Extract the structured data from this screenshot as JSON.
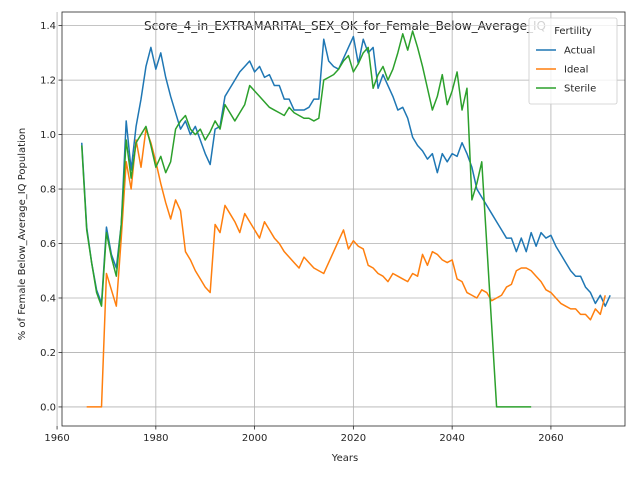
{
  "chart_data": {
    "type": "line",
    "title": "Score_4_in_EXTRAMARITAL_SEX_OK_for_Female_Below_Average_IQ",
    "xlabel": "Years",
    "ylabel": "% of Female Below_Average_IQ Population",
    "xlim": [
      1961,
      2075
    ],
    "ylim": [
      -0.07,
      1.45
    ],
    "xticks": [
      1960,
      1980,
      2000,
      2020,
      2040,
      2060
    ],
    "yticks": [
      0.0,
      0.2,
      0.4,
      0.6,
      0.8,
      1.0,
      1.2,
      1.4
    ],
    "xtick_labels": [
      "1960",
      "1980",
      "2000",
      "2020",
      "2040",
      "2060"
    ],
    "ytick_labels": [
      "0.0",
      "0.2",
      "0.4",
      "0.6",
      "0.8",
      "1.0",
      "1.2",
      "1.4"
    ],
    "grid": true,
    "legend": {
      "title": "Fertility",
      "placement": "top-right"
    },
    "series": [
      {
        "name": "Actual",
        "color": "#1f77b4",
        "points": [
          [
            1965,
            0.97
          ],
          [
            1966,
            0.66
          ],
          [
            1967,
            0.53
          ],
          [
            1968,
            0.43
          ],
          [
            1969,
            0.38
          ],
          [
            1970,
            0.66
          ],
          [
            1971,
            0.56
          ],
          [
            1972,
            0.51
          ],
          [
            1973,
            0.67
          ],
          [
            1974,
            1.05
          ],
          [
            1975,
            0.87
          ],
          [
            1976,
            1.03
          ],
          [
            1977,
            1.13
          ],
          [
            1978,
            1.25
          ],
          [
            1979,
            1.32
          ],
          [
            1980,
            1.24
          ],
          [
            1981,
            1.3
          ],
          [
            1982,
            1.21
          ],
          [
            1983,
            1.14
          ],
          [
            1984,
            1.08
          ],
          [
            1985,
            1.02
          ],
          [
            1986,
            1.05
          ],
          [
            1987,
            1.0
          ],
          [
            1988,
            1.03
          ],
          [
            1989,
            0.98
          ],
          [
            1990,
            0.93
          ],
          [
            1991,
            0.89
          ],
          [
            1992,
            1.02
          ],
          [
            1993,
            1.03
          ],
          [
            1994,
            1.14
          ],
          [
            1995,
            1.17
          ],
          [
            1996,
            1.2
          ],
          [
            1997,
            1.23
          ],
          [
            1998,
            1.25
          ],
          [
            1999,
            1.27
          ],
          [
            2000,
            1.23
          ],
          [
            2001,
            1.25
          ],
          [
            2002,
            1.21
          ],
          [
            2003,
            1.22
          ],
          [
            2004,
            1.18
          ],
          [
            2005,
            1.18
          ],
          [
            2006,
            1.13
          ],
          [
            2007,
            1.13
          ],
          [
            2008,
            1.09
          ],
          [
            2009,
            1.09
          ],
          [
            2010,
            1.09
          ],
          [
            2011,
            1.1
          ],
          [
            2012,
            1.13
          ],
          [
            2013,
            1.13
          ],
          [
            2014,
            1.35
          ],
          [
            2015,
            1.27
          ],
          [
            2016,
            1.25
          ],
          [
            2017,
            1.24
          ],
          [
            2018,
            1.28
          ],
          [
            2019,
            1.32
          ],
          [
            2020,
            1.36
          ],
          [
            2021,
            1.26
          ],
          [
            2022,
            1.35
          ],
          [
            2023,
            1.3
          ],
          [
            2024,
            1.32
          ],
          [
            2025,
            1.17
          ],
          [
            2026,
            1.22
          ],
          [
            2027,
            1.18
          ],
          [
            2028,
            1.14
          ],
          [
            2029,
            1.09
          ],
          [
            2030,
            1.1
          ],
          [
            2031,
            1.06
          ],
          [
            2032,
            0.99
          ],
          [
            2033,
            0.96
          ],
          [
            2034,
            0.94
          ],
          [
            2035,
            0.91
          ],
          [
            2036,
            0.93
          ],
          [
            2037,
            0.86
          ],
          [
            2038,
            0.93
          ],
          [
            2039,
            0.9
          ],
          [
            2040,
            0.93
          ],
          [
            2041,
            0.92
          ],
          [
            2042,
            0.97
          ],
          [
            2043,
            0.93
          ],
          [
            2044,
            0.88
          ],
          [
            2045,
            0.8
          ],
          [
            2046,
            0.77
          ],
          [
            2047,
            0.74
          ],
          [
            2048,
            0.71
          ],
          [
            2049,
            0.68
          ],
          [
            2050,
            0.65
          ],
          [
            2051,
            0.62
          ],
          [
            2052,
            0.62
          ],
          [
            2053,
            0.57
          ],
          [
            2054,
            0.62
          ],
          [
            2055,
            0.57
          ],
          [
            2056,
            0.64
          ],
          [
            2057,
            0.59
          ],
          [
            2058,
            0.64
          ],
          [
            2059,
            0.62
          ],
          [
            2060,
            0.63
          ],
          [
            2061,
            0.59
          ],
          [
            2062,
            0.56
          ],
          [
            2063,
            0.53
          ],
          [
            2064,
            0.5
          ],
          [
            2065,
            0.48
          ],
          [
            2066,
            0.48
          ],
          [
            2067,
            0.44
          ],
          [
            2068,
            0.42
          ],
          [
            2069,
            0.38
          ],
          [
            2070,
            0.41
          ],
          [
            2071,
            0.37
          ],
          [
            2072,
            0.41
          ]
        ]
      },
      {
        "name": "Ideal",
        "color": "#ff7f0e",
        "points": [
          [
            1966,
            0.0
          ],
          [
            1967,
            0.0
          ],
          [
            1968,
            0.0
          ],
          [
            1969,
            0.0
          ],
          [
            1970,
            0.49
          ],
          [
            1971,
            0.43
          ],
          [
            1972,
            0.37
          ],
          [
            1973,
            0.62
          ],
          [
            1974,
            0.9
          ],
          [
            1975,
            0.8
          ],
          [
            1976,
            0.98
          ],
          [
            1977,
            0.88
          ],
          [
            1978,
            1.02
          ],
          [
            1979,
            0.97
          ],
          [
            1980,
            0.9
          ],
          [
            1981,
            0.82
          ],
          [
            1982,
            0.75
          ],
          [
            1983,
            0.69
          ],
          [
            1984,
            0.76
          ],
          [
            1985,
            0.72
          ],
          [
            1986,
            0.57
          ],
          [
            1987,
            0.54
          ],
          [
            1988,
            0.5
          ],
          [
            1989,
            0.47
          ],
          [
            1990,
            0.44
          ],
          [
            1991,
            0.42
          ],
          [
            1992,
            0.67
          ],
          [
            1993,
            0.64
          ],
          [
            1994,
            0.74
          ],
          [
            1995,
            0.71
          ],
          [
            1996,
            0.68
          ],
          [
            1997,
            0.64
          ],
          [
            1998,
            0.71
          ],
          [
            1999,
            0.68
          ],
          [
            2000,
            0.65
          ],
          [
            2001,
            0.62
          ],
          [
            2002,
            0.68
          ],
          [
            2003,
            0.65
          ],
          [
            2004,
            0.62
          ],
          [
            2005,
            0.6
          ],
          [
            2006,
            0.57
          ],
          [
            2007,
            0.55
          ],
          [
            2008,
            0.53
          ],
          [
            2009,
            0.51
          ],
          [
            2010,
            0.55
          ],
          [
            2011,
            0.53
          ],
          [
            2012,
            0.51
          ],
          [
            2013,
            0.5
          ],
          [
            2014,
            0.49
          ],
          [
            2015,
            0.53
          ],
          [
            2016,
            0.57
          ],
          [
            2017,
            0.61
          ],
          [
            2018,
            0.65
          ],
          [
            2019,
            0.58
          ],
          [
            2020,
            0.61
          ],
          [
            2021,
            0.59
          ],
          [
            2022,
            0.58
          ],
          [
            2023,
            0.52
          ],
          [
            2024,
            0.51
          ],
          [
            2025,
            0.49
          ],
          [
            2026,
            0.48
          ],
          [
            2027,
            0.46
          ],
          [
            2028,
            0.49
          ],
          [
            2029,
            0.48
          ],
          [
            2030,
            0.47
          ],
          [
            2031,
            0.46
          ],
          [
            2032,
            0.49
          ],
          [
            2033,
            0.48
          ],
          [
            2034,
            0.56
          ],
          [
            2035,
            0.52
          ],
          [
            2036,
            0.57
          ],
          [
            2037,
            0.56
          ],
          [
            2038,
            0.54
          ],
          [
            2039,
            0.53
          ],
          [
            2040,
            0.54
          ],
          [
            2041,
            0.47
          ],
          [
            2042,
            0.46
          ],
          [
            2043,
            0.42
          ],
          [
            2044,
            0.41
          ],
          [
            2045,
            0.4
          ],
          [
            2046,
            0.43
          ],
          [
            2047,
            0.42
          ],
          [
            2048,
            0.39
          ],
          [
            2049,
            0.4
          ],
          [
            2050,
            0.41
          ],
          [
            2051,
            0.44
          ],
          [
            2052,
            0.45
          ],
          [
            2053,
            0.5
          ],
          [
            2054,
            0.51
          ],
          [
            2055,
            0.51
          ],
          [
            2056,
            0.5
          ],
          [
            2057,
            0.48
          ],
          [
            2058,
            0.46
          ],
          [
            2059,
            0.43
          ],
          [
            2060,
            0.42
          ],
          [
            2061,
            0.4
          ],
          [
            2062,
            0.38
          ],
          [
            2063,
            0.37
          ],
          [
            2064,
            0.36
          ],
          [
            2065,
            0.36
          ],
          [
            2066,
            0.34
          ],
          [
            2067,
            0.34
          ],
          [
            2068,
            0.32
          ],
          [
            2069,
            0.36
          ],
          [
            2070,
            0.34
          ],
          [
            2071,
            0.41
          ]
        ]
      },
      {
        "name": "Sterile",
        "color": "#2ca02c",
        "points": [
          [
            1965,
            0.96
          ],
          [
            1966,
            0.65
          ],
          [
            1967,
            0.53
          ],
          [
            1968,
            0.42
          ],
          [
            1969,
            0.37
          ],
          [
            1970,
            0.64
          ],
          [
            1971,
            0.55
          ],
          [
            1972,
            0.48
          ],
          [
            1973,
            0.67
          ],
          [
            1974,
            0.98
          ],
          [
            1975,
            0.84
          ],
          [
            1976,
            0.97
          ],
          [
            1977,
            1.0
          ],
          [
            1978,
            1.03
          ],
          [
            1979,
            0.96
          ],
          [
            1980,
            0.88
          ],
          [
            1981,
            0.92
          ],
          [
            1982,
            0.86
          ],
          [
            1983,
            0.9
          ],
          [
            1984,
            1.02
          ],
          [
            1985,
            1.05
          ],
          [
            1986,
            1.07
          ],
          [
            1987,
            1.02
          ],
          [
            1988,
            1.0
          ],
          [
            1989,
            1.02
          ],
          [
            1990,
            0.98
          ],
          [
            1991,
            1.01
          ],
          [
            1992,
            1.05
          ],
          [
            1993,
            1.02
          ],
          [
            1994,
            1.11
          ],
          [
            1995,
            1.08
          ],
          [
            1996,
            1.05
          ],
          [
            1997,
            1.08
          ],
          [
            1998,
            1.11
          ],
          [
            1999,
            1.18
          ],
          [
            2000,
            1.16
          ],
          [
            2001,
            1.14
          ],
          [
            2002,
            1.12
          ],
          [
            2003,
            1.1
          ],
          [
            2004,
            1.09
          ],
          [
            2005,
            1.08
          ],
          [
            2006,
            1.07
          ],
          [
            2007,
            1.1
          ],
          [
            2008,
            1.08
          ],
          [
            2009,
            1.07
          ],
          [
            2010,
            1.06
          ],
          [
            2011,
            1.06
          ],
          [
            2012,
            1.05
          ],
          [
            2013,
            1.06
          ],
          [
            2014,
            1.2
          ],
          [
            2015,
            1.21
          ],
          [
            2016,
            1.22
          ],
          [
            2017,
            1.24
          ],
          [
            2018,
            1.27
          ],
          [
            2019,
            1.29
          ],
          [
            2020,
            1.23
          ],
          [
            2021,
            1.26
          ],
          [
            2022,
            1.3
          ],
          [
            2023,
            1.32
          ],
          [
            2024,
            1.17
          ],
          [
            2025,
            1.22
          ],
          [
            2026,
            1.25
          ],
          [
            2027,
            1.2
          ],
          [
            2028,
            1.24
          ],
          [
            2029,
            1.3
          ],
          [
            2030,
            1.37
          ],
          [
            2031,
            1.31
          ],
          [
            2032,
            1.38
          ],
          [
            2033,
            1.32
          ],
          [
            2034,
            1.25
          ],
          [
            2035,
            1.17
          ],
          [
            2036,
            1.09
          ],
          [
            2037,
            1.14
          ],
          [
            2038,
            1.22
          ],
          [
            2039,
            1.11
          ],
          [
            2040,
            1.16
          ],
          [
            2041,
            1.23
          ],
          [
            2042,
            1.09
          ],
          [
            2043,
            1.17
          ],
          [
            2044,
            0.76
          ],
          [
            2045,
            0.82
          ],
          [
            2046,
            0.9
          ],
          [
            2047,
            0.6
          ],
          [
            2048,
            0.3
          ],
          [
            2049,
            0.0
          ],
          [
            2050,
            0.0
          ],
          [
            2051,
            0.0
          ],
          [
            2052,
            0.0
          ],
          [
            2053,
            0.0
          ],
          [
            2054,
            0.0
          ],
          [
            2055,
            0.0
          ],
          [
            2056,
            0.0
          ]
        ]
      }
    ]
  }
}
